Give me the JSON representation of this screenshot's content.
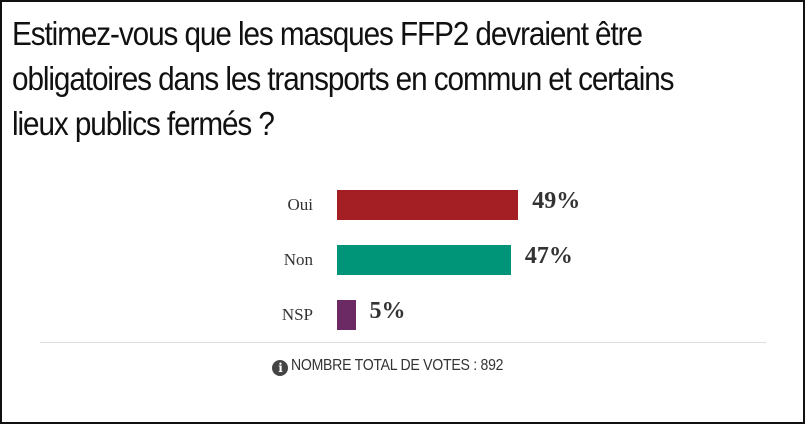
{
  "question": "Estimez-vous que les masques FFP2 devraient être\nobligatoires dans les transports en commun et certains\nlieux publics fermés ?",
  "chart_data": {
    "type": "bar",
    "orientation": "horizontal",
    "categories": [
      "Oui",
      "Non",
      "NSP"
    ],
    "values": [
      49,
      47,
      5
    ],
    "value_labels": [
      "49%",
      "47%",
      "5%"
    ],
    "colors": [
      "#a31f24",
      "#009478",
      "#6b2a63"
    ],
    "xlim": [
      0,
      100
    ],
    "title": "",
    "xlabel": "",
    "ylabel": ""
  },
  "footer": {
    "icon": "info-icon",
    "text": "NOMBRE TOTAL DE VOTES : 892"
  }
}
